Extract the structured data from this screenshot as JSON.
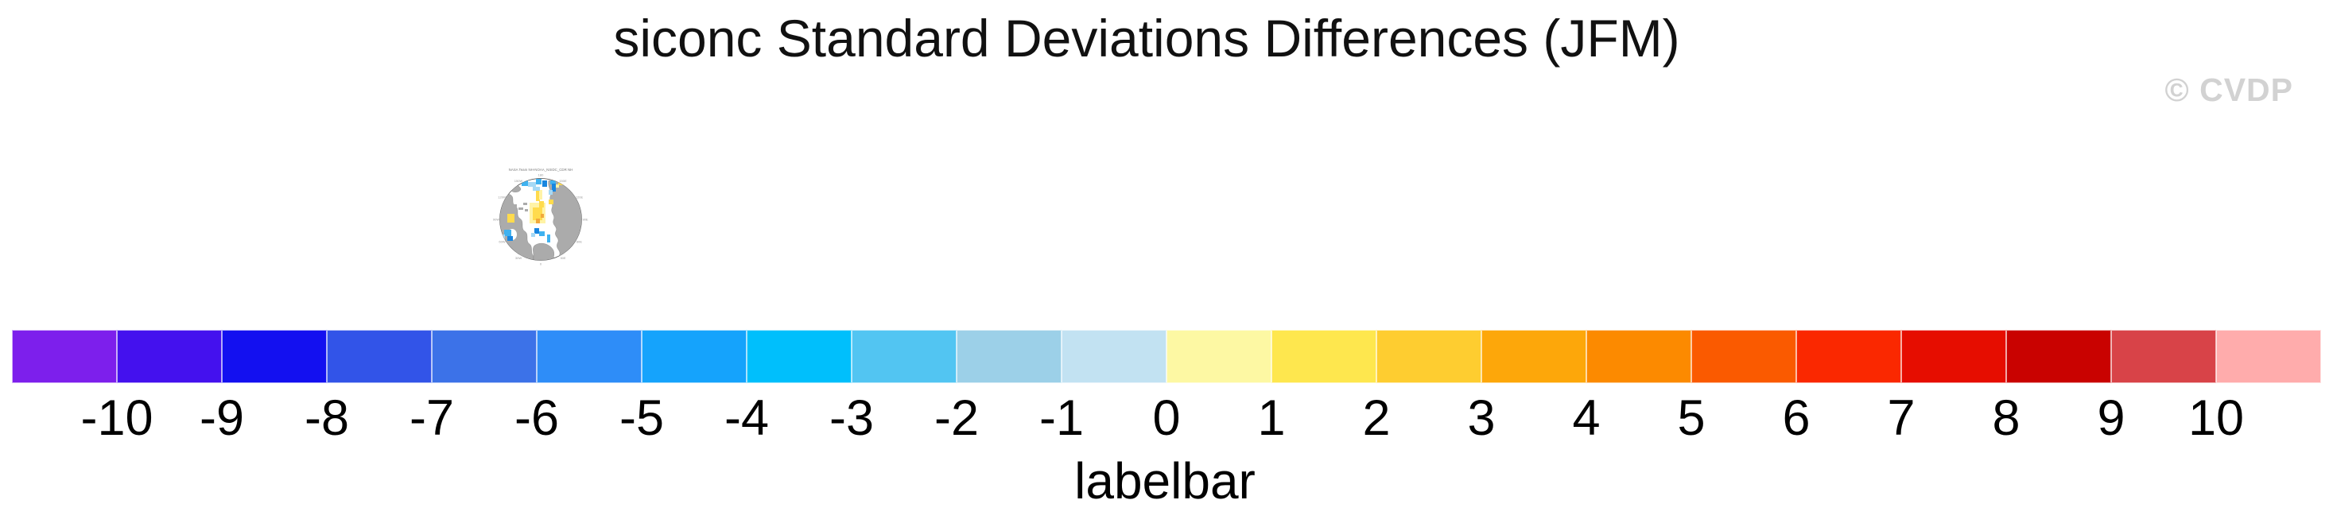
{
  "page": {
    "background": "#ffffff"
  },
  "header": {
    "title": "siconc Standard Deviations Differences (JFM)",
    "watermark": "© CVDP",
    "watermark_color": "#d2d2d2"
  },
  "thumbnail": {
    "title": "NASA Team NH-NOAA_NSIDC_CDR NH",
    "projection": "north-polar-stereographic",
    "meridian_labels": [
      "180",
      "150E",
      "120E",
      "90E",
      "60E",
      "30E",
      "0",
      "30W",
      "60W",
      "90W",
      "120W",
      "150W"
    ],
    "palette": {
      "land": "#ababab",
      "ocean": "#ffffff",
      "outline": "#444444",
      "gold": "#ffdb4d",
      "pale_yellow": "#fff3a6",
      "orange": "#f2a93b",
      "blue_dark": "#1886e0",
      "blue_mid": "#3fb2f0",
      "blue_light": "#a6d9f5"
    }
  },
  "chart_data": [
    {
      "type": "colorbar",
      "title": "siconc Standard Deviations Differences (JFM)",
      "xlabel": "labelbar",
      "orientation": "horizontal",
      "tick_labels": [
        "-10",
        "-9",
        "-8",
        "-7",
        "-6",
        "-5",
        "-4",
        "-3",
        "-2",
        "-1",
        "0",
        "1",
        "2",
        "3",
        "4",
        "5",
        "6",
        "7",
        "8",
        "9",
        "10"
      ],
      "tick_range": [
        -10,
        10
      ],
      "n_segments": 22,
      "segment_colors": [
        "#7d1fec",
        "#4411ee",
        "#1310f0",
        "#3254e8",
        "#3c72e8",
        "#2e8df8",
        "#15a3fc",
        "#00bffc",
        "#52c5f2",
        "#9cd0e8",
        "#c2e2f2",
        "#fdf8a3",
        "#fee74e",
        "#fecd30",
        "#fda70a",
        "#fc8a00",
        "#fa5a00",
        "#fa2800",
        "#e60d00",
        "#c90200",
        "#d84348",
        "#ffacac"
      ]
    },
    {
      "type": "map",
      "subtype": "polar-stereographic-north",
      "title": "NASA Team NH-NOAA_NSIDC_CDR NH",
      "description": "Arctic sea-ice concentration standard deviation difference patches: yellow/orange positive anomalies over central Arctic, blue negative anomalies in marginal seas",
      "land_color": "#ababab",
      "ocean_color": "#ffffff"
    }
  ]
}
